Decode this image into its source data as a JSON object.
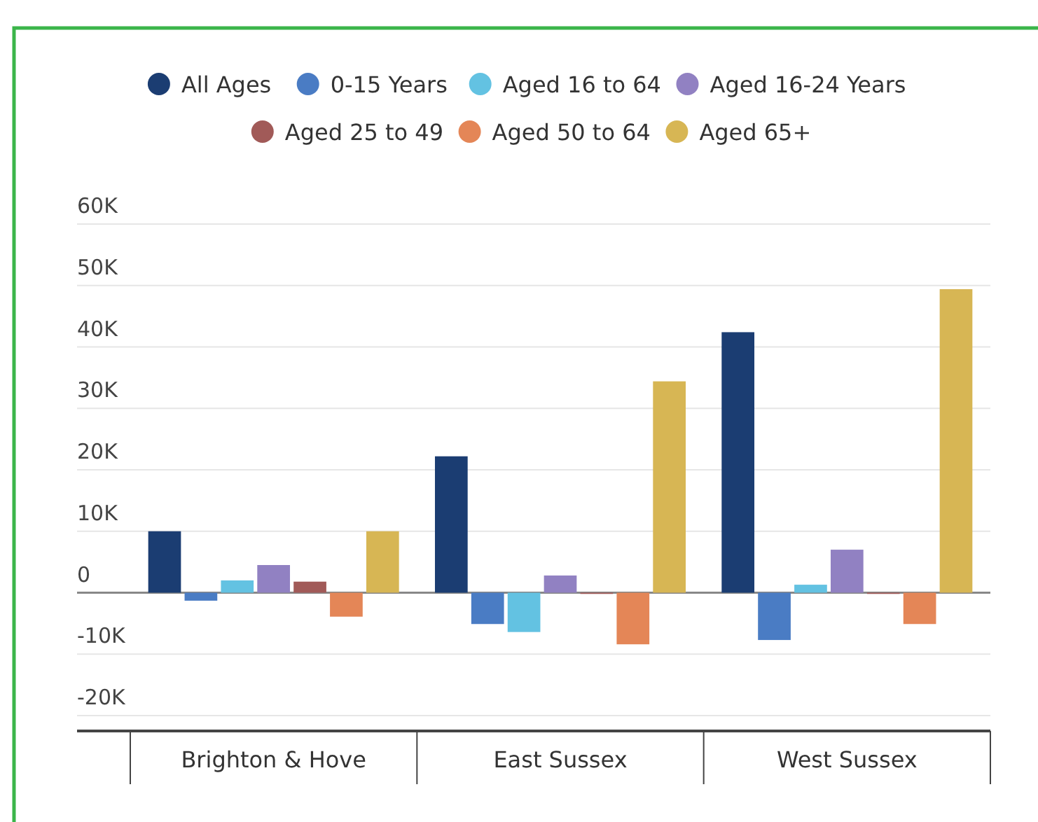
{
  "chart_data": {
    "type": "bar",
    "categories": [
      "Brighton & Hove",
      "East Sussex",
      "West Sussex"
    ],
    "series": [
      {
        "name": "All Ages",
        "color": "#1b3d72",
        "values": [
          10000,
          22200,
          42400
        ]
      },
      {
        "name": "0-15 Years",
        "color": "#4a7cc4",
        "values": [
          -1300,
          -5100,
          -7700
        ]
      },
      {
        "name": "Aged 16 to 64",
        "color": "#63c2e2",
        "values": [
          2000,
          -6400,
          1300
        ]
      },
      {
        "name": "Aged 16-24 Years",
        "color": "#9181c2",
        "values": [
          4500,
          2800,
          7000
        ]
      },
      {
        "name": "Aged 25 to 49",
        "color": "#a15a58",
        "values": [
          1800,
          -200,
          -200
        ]
      },
      {
        "name": "Aged 50 to 64",
        "color": "#e48657",
        "values": [
          -3900,
          -8400,
          -5100
        ]
      },
      {
        "name": "Aged 65+",
        "color": "#d7b654",
        "values": [
          10000,
          34400,
          49400
        ]
      }
    ],
    "ylim": [
      -20000,
      60000
    ],
    "yticks": [
      {
        "value": -20000,
        "label": "-20K"
      },
      {
        "value": -10000,
        "label": "-10K"
      },
      0,
      {
        "value": 10000,
        "label": "10K"
      },
      {
        "value": 20000,
        "label": "20K"
      },
      {
        "value": 30000,
        "label": "30K"
      },
      {
        "value": 40000,
        "label": "40K"
      },
      {
        "value": 50000,
        "label": "50K"
      },
      {
        "value": 60000,
        "label": "60K"
      }
    ],
    "grid": "y",
    "legend": "top"
  }
}
